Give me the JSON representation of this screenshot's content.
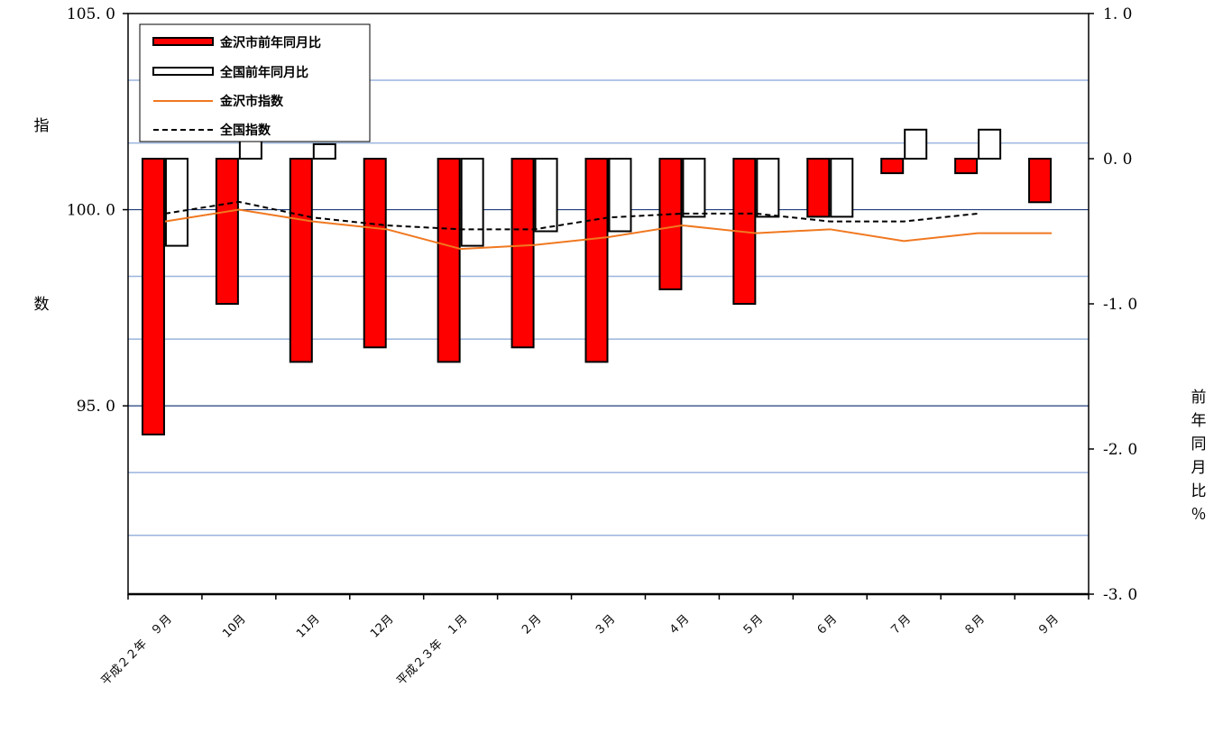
{
  "chart_data": {
    "type": "bar",
    "categories": [
      "平成２２年　９月",
      "10月",
      "11月",
      "12月",
      "平成２３年　１月",
      "２月",
      "３月",
      "４月",
      "５月",
      "６月",
      "７月",
      "８月",
      "９月"
    ],
    "series": [
      {
        "name": "金沢市前年同月比",
        "kind": "bar",
        "axis": "right",
        "color": "#ff0000",
        "values": [
          -1.9,
          -1.0,
          -1.4,
          -1.3,
          -1.4,
          -1.3,
          -1.4,
          -0.9,
          -1.0,
          -0.4,
          -0.1,
          -0.1,
          -0.3
        ]
      },
      {
        "name": "全国前年同月比",
        "kind": "bar",
        "axis": "right",
        "color": "#ffffff",
        "values": [
          -0.6,
          0.2,
          0.1,
          null,
          -0.6,
          -0.5,
          -0.5,
          -0.4,
          -0.4,
          -0.4,
          0.2,
          0.2,
          null
        ]
      },
      {
        "name": "金沢市指数",
        "kind": "line",
        "axis": "left",
        "color": "#f07820",
        "dash": false,
        "values": [
          99.7,
          100.0,
          99.7,
          99.5,
          99.0,
          99.1,
          99.3,
          99.6,
          99.4,
          99.5,
          99.2,
          99.4,
          99.4
        ]
      },
      {
        "name": "全国指数",
        "kind": "line",
        "axis": "left",
        "color": "#000000",
        "dash": true,
        "values": [
          99.9,
          100.2,
          99.8,
          99.6,
          99.5,
          99.5,
          99.8,
          99.9,
          99.9,
          99.7,
          99.7,
          99.9,
          null
        ]
      }
    ],
    "left_axis": {
      "label": [
        "指",
        "数"
      ],
      "ylim": [
        90.2,
        105.0
      ],
      "ticks": [
        105.0,
        100.0,
        95.0
      ],
      "tick_labels": [
        "105. 0",
        "100. 0",
        "95. 0"
      ],
      "gridlines": [
        103.3,
        101.7,
        100.0,
        98.3,
        96.7,
        95.0,
        93.3,
        91.7
      ]
    },
    "right_axis": {
      "label": [
        "前",
        "年",
        "同",
        "月",
        "比",
        "％"
      ],
      "ylim": [
        -3.0,
        1.0
      ],
      "ticks": [
        1.0,
        0.0,
        -1.0,
        -2.0,
        -3.0
      ],
      "tick_labels": [
        "1. 0",
        "0. 0",
        "-1. 0",
        "-2. 0",
        "-3. 0"
      ]
    },
    "grid": true,
    "legend": "top-left"
  }
}
